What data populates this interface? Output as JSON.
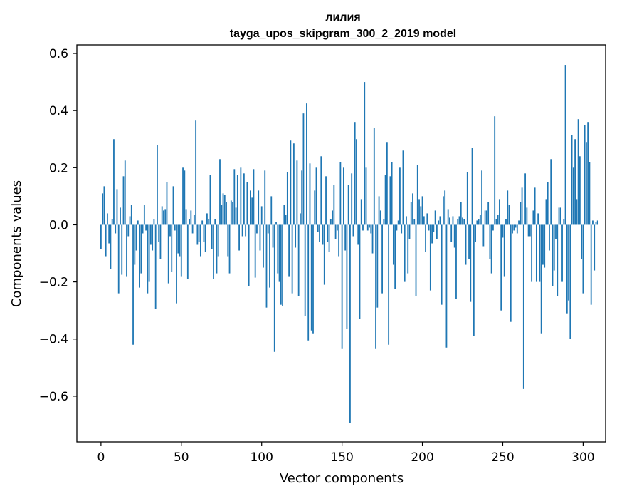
{
  "chart_data": {
    "type": "bar",
    "title_lines": [
      "лилия",
      "tayga_upos_skipgram_300_2_2019 model"
    ],
    "xlabel": "Vector components",
    "ylabel": "Components values",
    "xlim": [
      -15,
      314
    ],
    "ylim": [
      -0.76,
      0.63
    ],
    "xticks": [
      0,
      50,
      100,
      150,
      200,
      250,
      300
    ],
    "xtick_labels": [
      "0",
      "50",
      "100",
      "150",
      "200",
      "250",
      "300"
    ],
    "yticks": [
      -0.6,
      -0.4,
      -0.2,
      0.0,
      0.2,
      0.4,
      0.6
    ],
    "ytick_labels": [
      "−0.6",
      "−0.4",
      "−0.2",
      "0.0",
      "0.2",
      "0.4",
      "0.6"
    ],
    "grid": false,
    "bar_color": "#1f77b4",
    "categories_start": 0,
    "values": [
      -0.085,
      0.11,
      0.135,
      -0.11,
      0.04,
      -0.065,
      -0.155,
      0.02,
      0.3,
      -0.03,
      0.125,
      -0.24,
      0.06,
      -0.175,
      0.17,
      0.225,
      -0.18,
      -0.04,
      0.03,
      0.07,
      -0.42,
      -0.14,
      -0.09,
      0.015,
      -0.22,
      -0.17,
      -0.03,
      0.07,
      -0.02,
      -0.24,
      -0.2,
      -0.07,
      -0.09,
      0.02,
      -0.295,
      0.28,
      -0.06,
      -0.12,
      0.065,
      0.05,
      0.055,
      0.15,
      -0.205,
      -0.04,
      -0.165,
      0.135,
      -0.02,
      -0.275,
      -0.1,
      -0.11,
      -0.18,
      0.2,
      0.19,
      0.055,
      -0.19,
      0.02,
      0.05,
      -0.03,
      0.035,
      0.365,
      -0.07,
      -0.06,
      -0.11,
      0.015,
      -0.06,
      -0.095,
      0.04,
      0.02,
      0.175,
      -0.085,
      -0.19,
      0.02,
      -0.17,
      -0.11,
      0.23,
      0.07,
      0.11,
      0.105,
      0.08,
      -0.11,
      -0.17,
      0.085,
      0.08,
      0.195,
      0.06,
      0.175,
      -0.09,
      0.2,
      -0.04,
      0.18,
      -0.04,
      0.15,
      -0.215,
      0.12,
      0.095,
      0.195,
      -0.185,
      -0.03,
      0.12,
      -0.09,
      0.065,
      -0.15,
      0.19,
      -0.29,
      -0.03,
      -0.22,
      0.1,
      -0.08,
      -0.445,
      0.01,
      -0.17,
      -0.2,
      -0.28,
      -0.285,
      0.07,
      0.035,
      0.185,
      -0.18,
      0.295,
      -0.24,
      0.285,
      -0.08,
      0.225,
      -0.25,
      0.04,
      0.19,
      0.39,
      -0.32,
      0.425,
      -0.405,
      0.215,
      -0.37,
      -0.38,
      0.12,
      0.2,
      -0.025,
      -0.06,
      0.24,
      -0.07,
      -0.21,
      0.17,
      -0.06,
      -0.095,
      0.02,
      0.05,
      0.14,
      -0.05,
      -0.02,
      -0.11,
      0.22,
      -0.435,
      0.2,
      -0.09,
      -0.365,
      0.14,
      -0.695,
      0.18,
      -0.04,
      0.36,
      0.3,
      -0.07,
      -0.33,
      0.09,
      -0.02,
      0.5,
      0.2,
      -0.02,
      -0.01,
      -0.03,
      -0.1,
      0.34,
      -0.435,
      -0.29,
      0.1,
      0.05,
      -0.24,
      0.02,
      0.175,
      0.29,
      -0.42,
      0.17,
      0.22,
      -0.14,
      -0.225,
      -0.02,
      0.015,
      0.2,
      -0.03,
      0.26,
      -0.2,
      0.03,
      -0.17,
      -0.05,
      0.08,
      0.11,
      0.02,
      -0.25,
      0.21,
      0.09,
      0.065,
      0.1,
      0.03,
      -0.095,
      0.04,
      -0.02,
      -0.23,
      -0.065,
      -0.025,
      0.05,
      -0.05,
      0.015,
      0.03,
      -0.28,
      0.1,
      0.12,
      -0.43,
      0.055,
      0.025,
      -0.06,
      0.03,
      -0.08,
      -0.26,
      0.02,
      0.03,
      0.08,
      0.025,
      0.02,
      -0.14,
      0.185,
      -0.12,
      -0.27,
      0.27,
      -0.39,
      -0.06,
      0.015,
      0.02,
      0.035,
      0.19,
      -0.075,
      0.05,
      0.05,
      0.08,
      -0.12,
      -0.17,
      -0.02,
      0.38,
      0.02,
      0.035,
      0.09,
      -0.3,
      -0.045,
      -0.18,
      0.02,
      0.12,
      0.07,
      -0.34,
      -0.03,
      -0.02,
      -0.01,
      -0.03,
      0.015,
      0.08,
      0.13,
      -0.575,
      0.18,
      0.06,
      -0.04,
      -0.04,
      -0.2,
      0.05,
      0.13,
      -0.2,
      0.04,
      -0.2,
      -0.38,
      -0.14,
      -0.15,
      0.09,
      0.15,
      -0.09,
      0.23,
      -0.215,
      -0.16,
      -0.05,
      -0.25,
      0.06,
      0.06,
      -0.2,
      0.02,
      0.56,
      -0.31,
      -0.265,
      -0.4,
      0.315,
      0.2,
      0.3,
      0.09,
      0.37,
      0.24,
      -0.12,
      -0.24,
      0.35,
      0.29,
      0.36,
      0.22,
      -0.28,
      0.015,
      -0.16,
      0.01,
      0.015
    ]
  }
}
